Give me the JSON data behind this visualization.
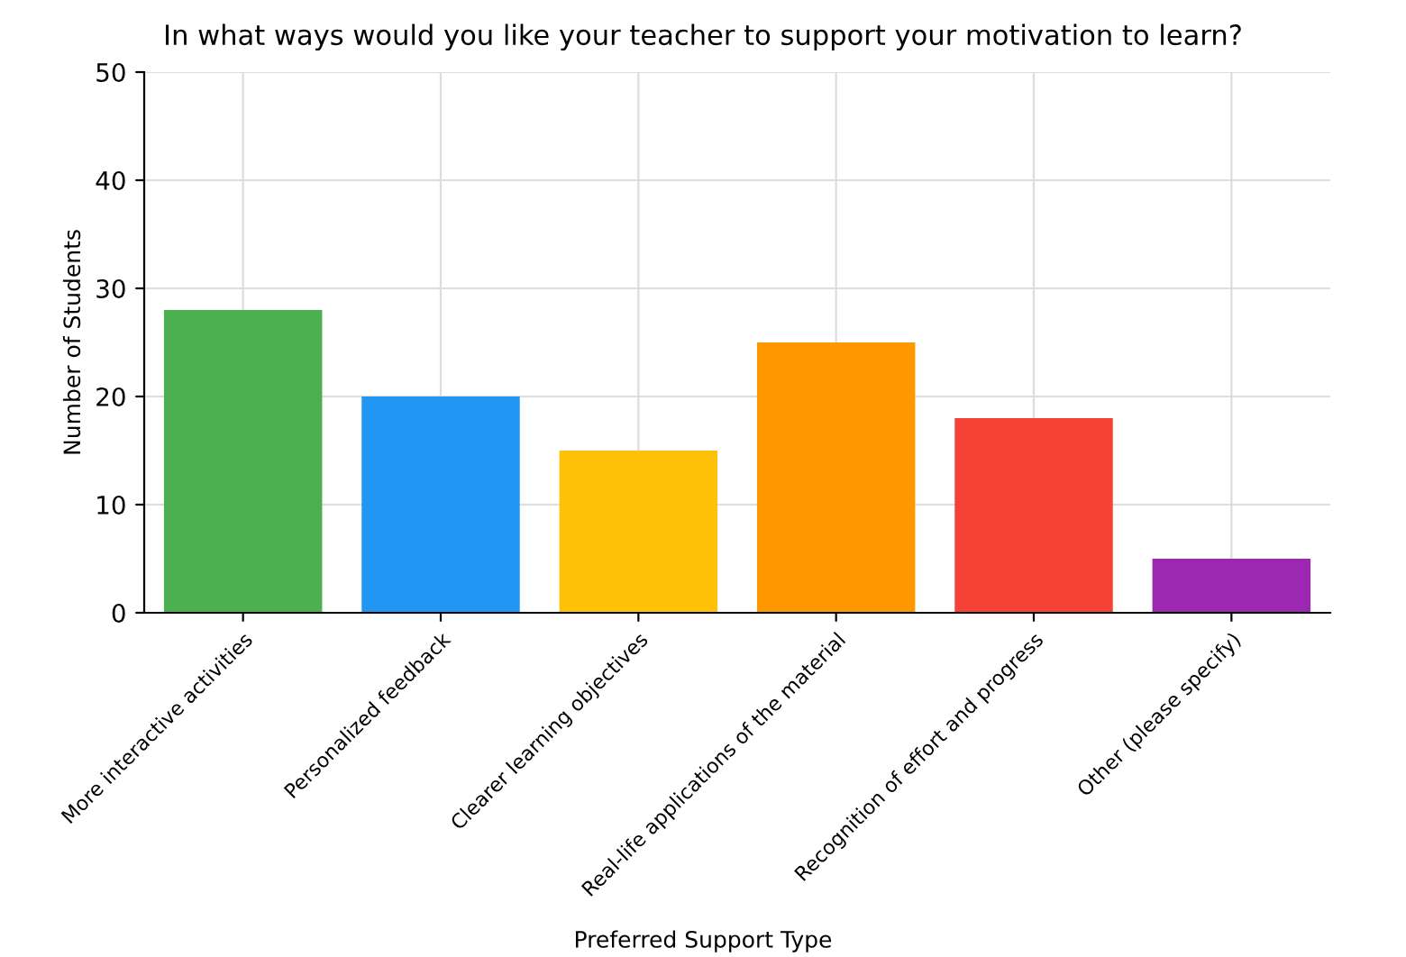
{
  "chart_data": {
    "type": "bar",
    "title": "In what ways would you like your teacher to support your motivation to learn?",
    "xlabel": "Preferred Support Type",
    "ylabel": "Number of Students",
    "categories": [
      "More interactive activities",
      "Personalized feedback",
      "Clearer learning objectives",
      "Real-life applications of the material",
      "Recognition of effort and progress",
      "Other (please specify)"
    ],
    "values": [
      28,
      20,
      15,
      25,
      18,
      5
    ],
    "colors": [
      "#4caf50",
      "#2196f3",
      "#ffc107",
      "#ff9800",
      "#f44336",
      "#9c27b0"
    ],
    "ylim": [
      0,
      50
    ],
    "yticks": [
      0,
      10,
      20,
      30,
      40,
      50
    ],
    "grid": true
  }
}
